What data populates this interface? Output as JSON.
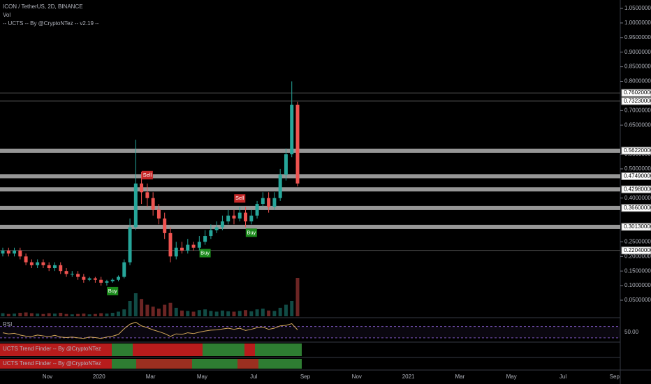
{
  "chart_data": {
    "type": "candlestick",
    "title": "ICON / TetherUS, 2D, BINANCE",
    "indicator_labels": [
      "Vol",
      "-- UCTS -- By @CryptoNTez -- v2.19 --"
    ],
    "ylim": [
      0.05,
      1.05
    ],
    "yticks": [
      {
        "value": 1.05,
        "label": "1.05000000"
      },
      {
        "value": 1.0,
        "label": "1.00000000"
      },
      {
        "value": 0.95,
        "label": "0.95000000"
      },
      {
        "value": 0.9,
        "label": "0.90000000"
      },
      {
        "value": 0.85,
        "label": "0.85000000"
      },
      {
        "value": 0.8,
        "label": "0.80000000"
      },
      {
        "value": 0.7,
        "label": "0.70000000"
      },
      {
        "value": 0.65,
        "label": "0.65000000"
      },
      {
        "value": 0.55,
        "label": "0.55000000"
      },
      {
        "value": 0.5,
        "label": "0.50000000"
      },
      {
        "value": 0.4,
        "label": "0.40000000"
      },
      {
        "value": 0.25,
        "label": "0.25000000"
      },
      {
        "value": 0.2,
        "label": "0.20000000"
      },
      {
        "value": 0.15,
        "label": "0.15000000"
      },
      {
        "value": 0.1,
        "label": "0.10000000"
      },
      {
        "value": 0.05,
        "label": "0.05000000"
      }
    ],
    "x_labels": [
      "Nov",
      "2020",
      "Mar",
      "May",
      "Jul",
      "Sep",
      "Nov",
      "2021",
      "Mar",
      "May",
      "Jul",
      "Sep"
    ],
    "up_color": "#26a69a",
    "down_color": "#ef5350",
    "candles": {
      "open": [
        0.21,
        0.22,
        0.21,
        0.22,
        0.2,
        0.18,
        0.17,
        0.18,
        0.17,
        0.16,
        0.17,
        0.15,
        0.14,
        0.14,
        0.13,
        0.12,
        0.125,
        0.12,
        0.11,
        0.115,
        0.12,
        0.13,
        0.18,
        0.3,
        0.45,
        0.42,
        0.4,
        0.36,
        0.33,
        0.28,
        0.2,
        0.23,
        0.22,
        0.24,
        0.23,
        0.25,
        0.27,
        0.29,
        0.3,
        0.32,
        0.34,
        0.33,
        0.35,
        0.32,
        0.34,
        0.38,
        0.4,
        0.37,
        0.4,
        0.48,
        0.55,
        0.72
      ],
      "high": [
        0.23,
        0.23,
        0.23,
        0.23,
        0.21,
        0.19,
        0.19,
        0.19,
        0.18,
        0.18,
        0.18,
        0.16,
        0.15,
        0.15,
        0.14,
        0.13,
        0.13,
        0.13,
        0.12,
        0.125,
        0.135,
        0.19,
        0.33,
        0.6,
        0.49,
        0.45,
        0.42,
        0.38,
        0.35,
        0.3,
        0.25,
        0.25,
        0.26,
        0.25,
        0.27,
        0.29,
        0.31,
        0.32,
        0.34,
        0.36,
        0.36,
        0.37,
        0.37,
        0.36,
        0.39,
        0.42,
        0.42,
        0.42,
        0.5,
        0.57,
        0.8,
        0.73
      ],
      "low": [
        0.2,
        0.2,
        0.2,
        0.19,
        0.17,
        0.16,
        0.16,
        0.16,
        0.15,
        0.15,
        0.14,
        0.13,
        0.13,
        0.12,
        0.11,
        0.115,
        0.11,
        0.1,
        0.1,
        0.11,
        0.115,
        0.125,
        0.17,
        0.29,
        0.38,
        0.37,
        0.34,
        0.31,
        0.26,
        0.18,
        0.19,
        0.21,
        0.21,
        0.22,
        0.22,
        0.24,
        0.26,
        0.28,
        0.29,
        0.31,
        0.31,
        0.32,
        0.3,
        0.31,
        0.33,
        0.37,
        0.35,
        0.36,
        0.39,
        0.46,
        0.54,
        0.44
      ],
      "close": [
        0.22,
        0.21,
        0.22,
        0.2,
        0.18,
        0.17,
        0.18,
        0.17,
        0.16,
        0.17,
        0.15,
        0.14,
        0.14,
        0.13,
        0.12,
        0.125,
        0.12,
        0.11,
        0.115,
        0.12,
        0.13,
        0.18,
        0.3,
        0.45,
        0.42,
        0.4,
        0.36,
        0.33,
        0.28,
        0.2,
        0.23,
        0.22,
        0.24,
        0.23,
        0.25,
        0.27,
        0.29,
        0.3,
        0.32,
        0.34,
        0.33,
        0.35,
        0.32,
        0.34,
        0.38,
        0.4,
        0.37,
        0.4,
        0.48,
        0.55,
        0.72,
        0.45
      ]
    },
    "volume": {
      "vlim": [
        0,
        100
      ],
      "values": [
        8,
        6,
        7,
        9,
        10,
        8,
        7,
        6,
        8,
        7,
        9,
        6,
        5,
        6,
        7,
        5,
        6,
        8,
        7,
        9,
        12,
        18,
        40,
        60,
        45,
        30,
        25,
        20,
        30,
        35,
        22,
        15,
        14,
        12,
        16,
        18,
        14,
        12,
        15,
        13,
        12,
        14,
        16,
        13,
        18,
        20,
        15,
        14,
        22,
        30,
        40,
        100
      ]
    },
    "rsi": {
      "label": "RSI",
      "ylim": [
        20,
        96
      ],
      "yticks": [
        {
          "value": 50,
          "label": "50.00"
        }
      ],
      "bands": [
        70,
        30
      ],
      "values": [
        48,
        44,
        46,
        40,
        36,
        35,
        40,
        37,
        34,
        39,
        33,
        31,
        33,
        30,
        28,
        33,
        31,
        28,
        33,
        36,
        42,
        62,
        78,
        85,
        72,
        66,
        58,
        52,
        45,
        35,
        44,
        42,
        48,
        45,
        50,
        54,
        57,
        58,
        61,
        64,
        60,
        64,
        56,
        60,
        66,
        68,
        60,
        64,
        72,
        74,
        80,
        58
      ]
    },
    "trend_label": "UCTS Trend Finder -- By @CryptoNTez",
    "levels": [
      {
        "value": 0.7602,
        "label": "0.76020000",
        "style": "line"
      },
      {
        "value": 0.7323,
        "label": "0.73230000",
        "style": "line"
      },
      {
        "value": 0.5622,
        "label": "0.56220000",
        "style": "band"
      },
      {
        "value": 0.4749,
        "label": "0.47490000",
        "style": "band"
      },
      {
        "value": 0.4298,
        "label": "0.42980000",
        "style": "band"
      },
      {
        "value": 0.366,
        "label": "0.36600000",
        "style": "band"
      },
      {
        "value": 0.3013,
        "label": "0.30130000",
        "style": "band"
      },
      {
        "value": 0.2204,
        "label": "0.22040000",
        "style": "line"
      }
    ],
    "signals": [
      {
        "text": "Buy",
        "candle": 19,
        "side": "below"
      },
      {
        "text": "Sell",
        "candle": 25,
        "side": "above"
      },
      {
        "text": "Buy",
        "candle": 35,
        "side": "below"
      },
      {
        "text": "Sell",
        "candle": 41,
        "side": "above"
      },
      {
        "text": "Buy",
        "candle": 43,
        "side": "below"
      }
    ]
  }
}
